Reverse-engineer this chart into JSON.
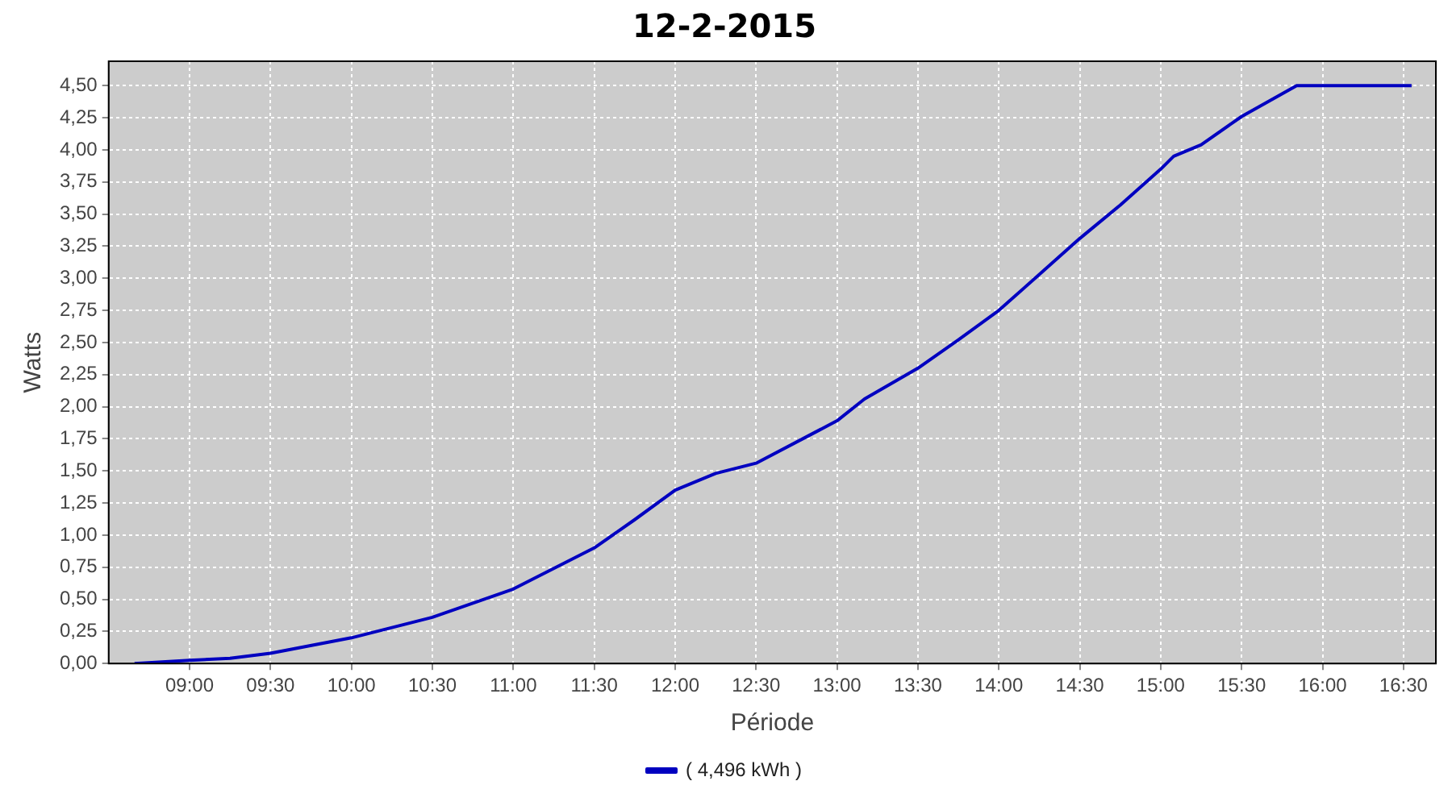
{
  "chart_data": {
    "type": "line",
    "title": "12-2-2015",
    "xlabel": "Période",
    "ylabel": "Watts",
    "xlim": [
      8.5,
      16.7
    ],
    "xticks": [
      {
        "value": 9,
        "label": "09:00"
      },
      {
        "value": 9.5,
        "label": "09:30"
      },
      {
        "value": 10,
        "label": "10:00"
      },
      {
        "value": 10.5,
        "label": "10:30"
      },
      {
        "value": 11,
        "label": "11:00"
      },
      {
        "value": 11.5,
        "label": "11:30"
      },
      {
        "value": 12,
        "label": "12:00"
      },
      {
        "value": 12.5,
        "label": "12:30"
      },
      {
        "value": 13,
        "label": "13:00"
      },
      {
        "value": 13.5,
        "label": "13:30"
      },
      {
        "value": 14,
        "label": "14:00"
      },
      {
        "value": 14.5,
        "label": "14:30"
      },
      {
        "value": 15,
        "label": "15:00"
      },
      {
        "value": 15.5,
        "label": "15:30"
      },
      {
        "value": 16,
        "label": "16:00"
      },
      {
        "value": 16.5,
        "label": "16:30"
      }
    ],
    "ylim": [
      0,
      4.69
    ],
    "yticks": [
      {
        "value": 0,
        "label": "0,00"
      },
      {
        "value": 0.25,
        "label": "0,25"
      },
      {
        "value": 0.5,
        "label": "0,50"
      },
      {
        "value": 0.75,
        "label": "0,75"
      },
      {
        "value": 1,
        "label": "1,00"
      },
      {
        "value": 1.25,
        "label": "1,25"
      },
      {
        "value": 1.5,
        "label": "1,50"
      },
      {
        "value": 1.75,
        "label": "1,75"
      },
      {
        "value": 2,
        "label": "2,00"
      },
      {
        "value": 2.25,
        "label": "2,25"
      },
      {
        "value": 2.5,
        "label": "2,50"
      },
      {
        "value": 2.75,
        "label": "2,75"
      },
      {
        "value": 3,
        "label": "3,00"
      },
      {
        "value": 3.25,
        "label": "3,25"
      },
      {
        "value": 3.5,
        "label": "3,50"
      },
      {
        "value": 3.75,
        "label": "3,75"
      },
      {
        "value": 4,
        "label": "4,00"
      },
      {
        "value": 4.25,
        "label": "4,25"
      },
      {
        "value": 4.5,
        "label": "4,50"
      }
    ],
    "grid": true,
    "legend": "bottom",
    "marker": "none",
    "line_style": "solid",
    "x": [
      8.66,
      9,
      9.25,
      9.5,
      10,
      10.25,
      10.5,
      11,
      11.25,
      11.5,
      11.75,
      12,
      12.25,
      12.5,
      13,
      13.17,
      13.5,
      13.75,
      14,
      14.25,
      14.5,
      14.75,
      15,
      15.08,
      15.25,
      15.5,
      15.84,
      16.55
    ],
    "series": [
      {
        "name": "( 4,496 kWh )",
        "color": "#0000c0",
        "values": [
          0,
          0.025,
          0.04,
          0.08,
          0.2,
          0.28,
          0.36,
          0.58,
          0.74,
          0.9,
          1.12,
          1.35,
          1.48,
          1.56,
          1.89,
          2.06,
          2.3,
          2.52,
          2.75,
          3.03,
          3.31,
          3.57,
          3.85,
          3.95,
          4.04,
          4.26,
          4.5,
          4.5
        ]
      }
    ]
  }
}
